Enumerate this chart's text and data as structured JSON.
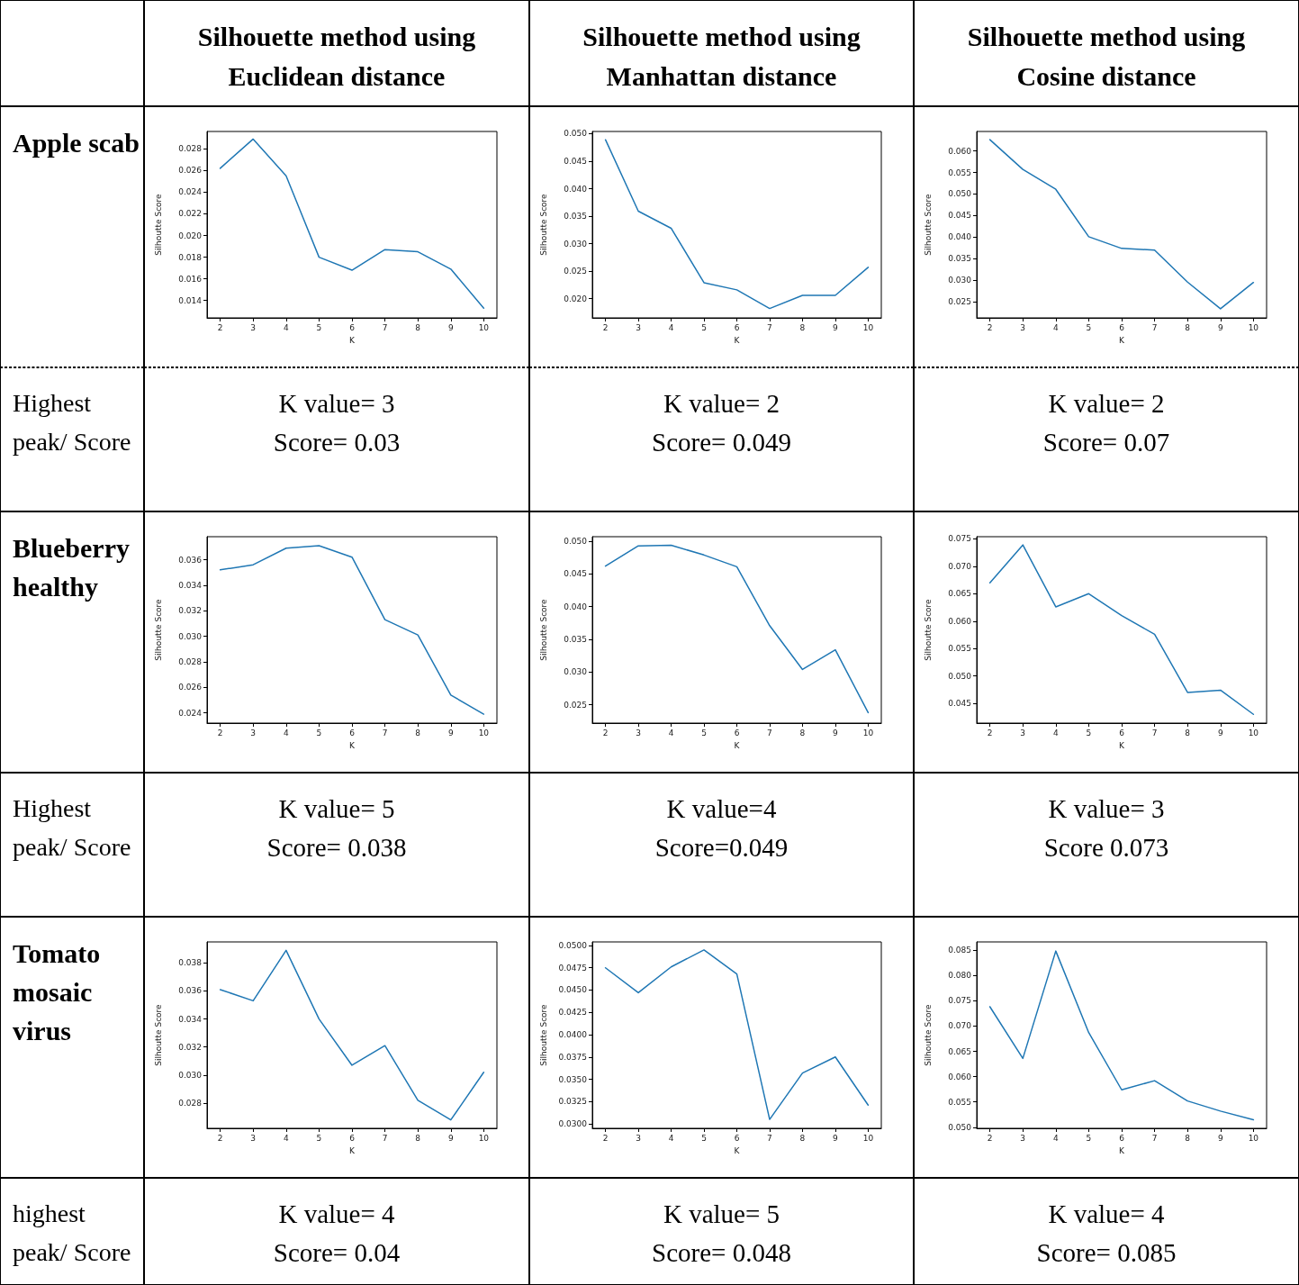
{
  "chart_data": [
    {
      "type": "other",
      "annotations": [
        "Silhouette method using Euclidean distance",
        "Silhouette method using Manhattan distance",
        "Silhouette method using Cosine distance"
      ]
    },
    {
      "type": "other",
      "title": "Apple scab"
    },
    {
      "type": "line",
      "x": [
        2,
        3,
        4,
        5,
        6,
        7,
        8,
        9,
        10
      ],
      "values": [
        0.0262,
        0.0289,
        0.0255,
        0.018,
        0.0168,
        0.0187,
        0.0185,
        0.0169,
        0.0133
      ],
      "color": "#1f77b4",
      "xlabel": "K",
      "ylabel": "Silhoutte Score",
      "xlim": [
        1.6,
        10.4
      ],
      "xticks": [
        2,
        3,
        4,
        5,
        6,
        7,
        8,
        9,
        10
      ],
      "ylim": [
        0.0124,
        0.0296
      ],
      "yticks": [
        0.014,
        0.016,
        0.018,
        {
          "value": 0.02,
          "label": "0.020"
        },
        0.022,
        0.024,
        0.026,
        0.028
      ]
    },
    {
      "type": "line",
      "x": [
        2,
        3,
        4,
        5,
        6,
        7,
        8,
        9,
        10
      ],
      "values": [
        0.0489,
        0.0359,
        0.0328,
        0.0229,
        0.0216,
        0.0182,
        0.0206,
        0.0206,
        0.0257
      ],
      "color": "#1f77b4",
      "xlabel": "K",
      "ylabel": "Silhoutte Score",
      "xlim": [
        1.6,
        10.4
      ],
      "xticks": [
        2,
        3,
        4,
        5,
        6,
        7,
        8,
        9,
        10
      ],
      "ylim": [
        0.0165,
        0.0504
      ],
      "yticks": [
        {
          "value": 0.02,
          "label": "0.020"
        },
        0.025,
        {
          "value": 0.03,
          "label": "0.030"
        },
        0.035,
        {
          "value": 0.04,
          "label": "0.040"
        },
        0.045,
        {
          "value": 0.05,
          "label": "0.050"
        }
      ]
    },
    {
      "type": "line",
      "x": [
        2,
        3,
        4,
        5,
        6,
        7,
        8,
        9,
        10
      ],
      "values": [
        0.0626,
        0.0557,
        0.0511,
        0.0401,
        0.0374,
        0.037,
        0.0296,
        0.0234,
        0.0295
      ],
      "color": "#1f77b4",
      "xlabel": "K",
      "ylabel": "Silhoutte Score",
      "xlim": [
        1.6,
        10.4
      ],
      "xticks": [
        2,
        3,
        4,
        5,
        6,
        7,
        8,
        9,
        10
      ],
      "ylim": [
        0.0213,
        0.0645
      ],
      "yticks": [
        0.025,
        {
          "value": 0.03,
          "label": "0.030"
        },
        0.035,
        {
          "value": 0.04,
          "label": "0.040"
        },
        0.045,
        {
          "value": 0.05,
          "label": "0.050"
        },
        0.055,
        {
          "value": 0.06,
          "label": "0.060"
        }
      ]
    },
    {
      "type": "other",
      "title": "Highest peak/ Score",
      "annotations": [
        "K value= 3",
        "Score= 0.03",
        "K value= 2",
        "Score= 0.049",
        "K value= 2",
        "Score= 0.07"
      ]
    },
    {
      "type": "other",
      "title": "Blueberry healthy"
    },
    {
      "type": "line",
      "x": [
        2,
        3,
        4,
        5,
        6,
        7,
        8,
        9,
        10
      ],
      "values": [
        0.0352,
        0.0356,
        0.0369,
        0.0371,
        0.0362,
        0.0313,
        0.0301,
        0.0254,
        0.0239
      ],
      "color": "#1f77b4",
      "xlabel": "K",
      "ylabel": "Silhoutte Score",
      "xlim": [
        1.6,
        10.4
      ],
      "xticks": [
        2,
        3,
        4,
        5,
        6,
        7,
        8,
        9,
        10
      ],
      "ylim": [
        0.0232,
        0.0378
      ],
      "yticks": [
        0.024,
        0.026,
        0.028,
        {
          "value": 0.03,
          "label": "0.030"
        },
        0.032,
        0.034,
        0.036
      ]
    },
    {
      "type": "line",
      "x": [
        2,
        3,
        4,
        5,
        6,
        7,
        8,
        9,
        10
      ],
      "values": [
        0.0462,
        0.0493,
        0.0494,
        0.0479,
        0.0461,
        0.0371,
        0.0304,
        0.0334,
        0.0238
      ],
      "color": "#1f77b4",
      "xlabel": "K",
      "ylabel": "Silhoutte Score",
      "xlim": [
        1.6,
        10.4
      ],
      "xticks": [
        2,
        3,
        4,
        5,
        6,
        7,
        8,
        9,
        10
      ],
      "ylim": [
        0.0222,
        0.0507
      ],
      "yticks": [
        0.025,
        {
          "value": 0.03,
          "label": "0.030"
        },
        0.035,
        {
          "value": 0.04,
          "label": "0.040"
        },
        0.045,
        {
          "value": 0.05,
          "label": "0.050"
        }
      ]
    },
    {
      "type": "line",
      "x": [
        2,
        3,
        4,
        5,
        6,
        7,
        8,
        9,
        10
      ],
      "values": [
        0.067,
        0.0739,
        0.0626,
        0.065,
        0.061,
        0.0576,
        0.047,
        0.0474,
        0.043
      ],
      "color": "#1f77b4",
      "xlabel": "K",
      "ylabel": "Silhoutte Score",
      "xlim": [
        1.6,
        10.4
      ],
      "xticks": [
        2,
        3,
        4,
        5,
        6,
        7,
        8,
        9,
        10
      ],
      "ylim": [
        0.0414,
        0.0754
      ],
      "yticks": [
        0.045,
        {
          "value": 0.05,
          "label": "0.050"
        },
        0.055,
        {
          "value": 0.06,
          "label": "0.060"
        },
        0.065,
        {
          "value": 0.07,
          "label": "0.070"
        },
        0.075
      ]
    },
    {
      "type": "other",
      "title": "Highest peak/ Score",
      "annotations": [
        "K value= 5",
        "Score= 0.038",
        "K value=4",
        "Score=0.049",
        "K value= 3",
        "Score 0.073"
      ]
    },
    {
      "type": "other",
      "title": "Tomato mosaic virus"
    },
    {
      "type": "line",
      "x": [
        2,
        3,
        4,
        5,
        6,
        7,
        8,
        9,
        10
      ],
      "values": [
        0.0361,
        0.0353,
        0.0389,
        0.034,
        0.0307,
        0.0321,
        0.0282,
        0.0268,
        0.0302
      ],
      "color": "#1f77b4",
      "xlabel": "K",
      "ylabel": "Silhoutte Score",
      "xlim": [
        1.6,
        10.4
      ],
      "xticks": [
        2,
        3,
        4,
        5,
        6,
        7,
        8,
        9,
        10
      ],
      "ylim": [
        0.0262,
        0.0395
      ],
      "yticks": [
        0.028,
        {
          "value": 0.03,
          "label": "0.030"
        },
        0.032,
        0.034,
        0.036,
        0.038
      ]
    },
    {
      "type": "line",
      "x": [
        2,
        3,
        4,
        5,
        6,
        7,
        8,
        9,
        10
      ],
      "values": [
        0.0475,
        0.0447,
        0.0476,
        0.0495,
        0.0468,
        0.0305,
        0.0357,
        0.0375,
        0.0321
      ],
      "color": "#1f77b4",
      "xlabel": "K",
      "ylabel": "Silhoutte Score",
      "xlim": [
        1.6,
        10.4
      ],
      "xticks": [
        2,
        3,
        4,
        5,
        6,
        7,
        8,
        9,
        10
      ],
      "ylim": [
        0.0295,
        0.0504
      ],
      "yticks": [
        {
          "value": 0.03,
          "label": "0.0300"
        },
        0.0325,
        {
          "value": 0.035,
          "label": "0.0350"
        },
        0.0375,
        {
          "value": 0.04,
          "label": "0.0400"
        },
        0.0425,
        {
          "value": 0.045,
          "label": "0.0450"
        },
        0.0475,
        {
          "value": 0.05,
          "label": "0.0500"
        }
      ]
    },
    {
      "type": "line",
      "x": [
        2,
        3,
        4,
        5,
        6,
        7,
        8,
        9,
        10
      ],
      "values": [
        0.0738,
        0.0636,
        0.0848,
        0.0687,
        0.0574,
        0.0592,
        0.0552,
        0.0532,
        0.0515
      ],
      "color": "#1f77b4",
      "xlabel": "K",
      "ylabel": "Silhoutte Score",
      "xlim": [
        1.6,
        10.4
      ],
      "xticks": [
        2,
        3,
        4,
        5,
        6,
        7,
        8,
        9,
        10
      ],
      "ylim": [
        0.0498,
        0.0866
      ],
      "yticks": [
        {
          "value": 0.05,
          "label": "0.050"
        },
        0.055,
        {
          "value": 0.06,
          "label": "0.060"
        },
        0.065,
        {
          "value": 0.07,
          "label": "0.070"
        },
        0.075,
        {
          "value": 0.08,
          "label": "0.080"
        },
        0.085
      ]
    },
    {
      "type": "other",
      "title": "highest peak/ Score",
      "annotations": [
        "K value= 4",
        "Score= 0.04",
        "K value= 5",
        "Score= 0.048",
        "K value= 4",
        "Score= 0.085"
      ]
    }
  ]
}
